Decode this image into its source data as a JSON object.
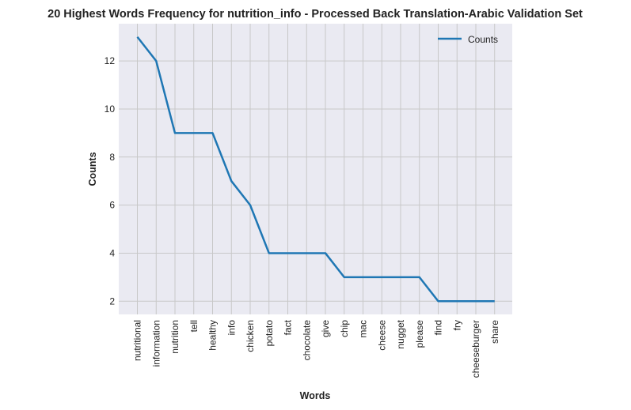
{
  "chart_data": {
    "type": "line",
    "title": "20 Highest Words Frequency for nutrition_info - Processed Back Translation-Arabic Validation Set",
    "xlabel": "Words",
    "ylabel": "Counts",
    "categories": [
      "nutritional",
      "information",
      "nutrition",
      "tell",
      "healthy",
      "info",
      "chicken",
      "potato",
      "fact",
      "chocolate",
      "give",
      "chip",
      "mac",
      "cheese",
      "nugget",
      "please",
      "find",
      "fry",
      "cheeseburger",
      "share"
    ],
    "series": [
      {
        "name": "Counts",
        "values": [
          13,
          12,
          9,
          9,
          9,
          7,
          6,
          4,
          4,
          4,
          4,
          3,
          3,
          3,
          3,
          3,
          2,
          2,
          2,
          2
        ],
        "color": "#1f77b4"
      }
    ],
    "ylim": [
      1.45,
      13.55
    ],
    "yticks": [
      "2",
      "4",
      "6",
      "8",
      "10",
      "12"
    ],
    "grid": true,
    "legend_position": "top-right",
    "background": "#eaeaf2"
  }
}
